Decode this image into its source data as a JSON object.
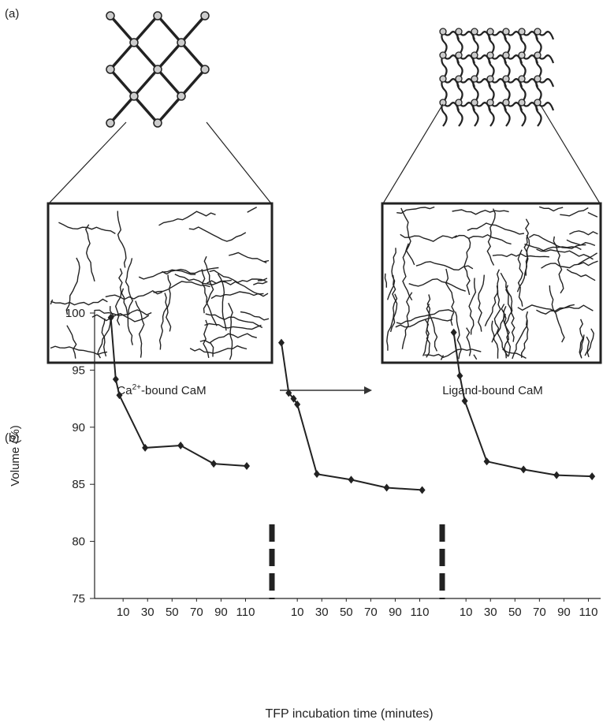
{
  "panel_a": {
    "label": "(a)",
    "left_caption": {
      "base": "Ca",
      "sup": "2+",
      "rest": "-bound CaM"
    },
    "right_caption": "Ligand-bound CaM"
  },
  "chart_data": {
    "type": "line",
    "panel_label": "(b)",
    "ylabel": "Volume (%)",
    "xlabel": "TFP incubation time (minutes)",
    "ylim": [
      75,
      100
    ],
    "yticks": [
      75,
      80,
      85,
      90,
      95,
      100
    ],
    "xlim": [
      -12,
      120
    ],
    "xticks": [
      10,
      30,
      50,
      70,
      90,
      110
    ],
    "series": [
      {
        "color": "#222222",
        "x": [
          0,
          4,
          7,
          28,
          57,
          84,
          111
        ],
        "values": [
          99.6,
          94.2,
          92.8,
          88.2,
          88.4,
          86.8,
          86.6
        ]
      },
      {
        "color": "#222222",
        "x": [
          -3,
          3,
          7,
          10,
          26,
          54,
          83,
          112
        ],
        "values": [
          97.4,
          93,
          92.5,
          92,
          85.9,
          85.4,
          84.7,
          84.5
        ]
      },
      {
        "color": "#222222",
        "x": [
          0,
          5,
          9,
          27,
          57,
          84,
          113
        ],
        "values": [
          98.3,
          94.5,
          92.3,
          87,
          86.3,
          85.8,
          85.7
        ]
      }
    ]
  }
}
